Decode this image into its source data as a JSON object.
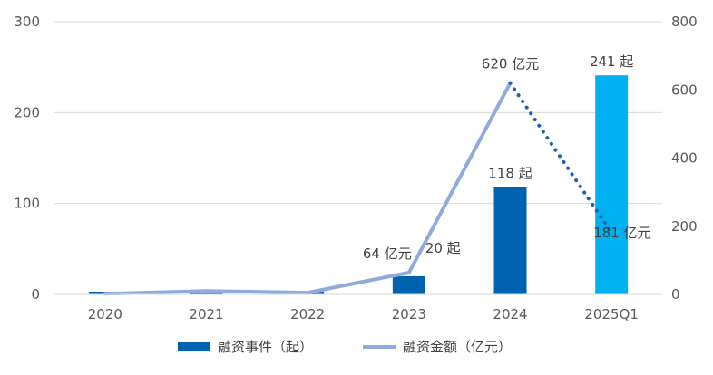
{
  "chart_data": {
    "type": "bar+line",
    "categories": [
      "2020",
      "2021",
      "2022",
      "2023",
      "2024",
      "2025Q1"
    ],
    "series": [
      {
        "name": "融资事件（起）",
        "type": "bar",
        "axis": "left",
        "values": [
          3,
          2,
          3,
          20,
          118,
          241
        ],
        "color": "#0063B1",
        "highlight_color": "#00B0F0",
        "data_labels": [
          "",
          "",
          "",
          "20 起",
          "118 起",
          "241 起"
        ]
      },
      {
        "name": "融资金额（亿元）",
        "type": "line",
        "axis": "right",
        "values": [
          2,
          10,
          5,
          64,
          620,
          181
        ],
        "color": "#8FAADC",
        "projection_color": "#1F5FA8",
        "data_labels": [
          "",
          "",
          "",
          "64 亿元",
          "620 亿元",
          "181 亿元"
        ]
      }
    ],
    "y_left": {
      "min": 0,
      "max": 300,
      "ticks": [
        0,
        100,
        200,
        300
      ]
    },
    "y_right": {
      "min": 0,
      "max": 800,
      "ticks": [
        0,
        200,
        400,
        600,
        800
      ]
    },
    "grid": true,
    "legend_position": "bottom"
  }
}
